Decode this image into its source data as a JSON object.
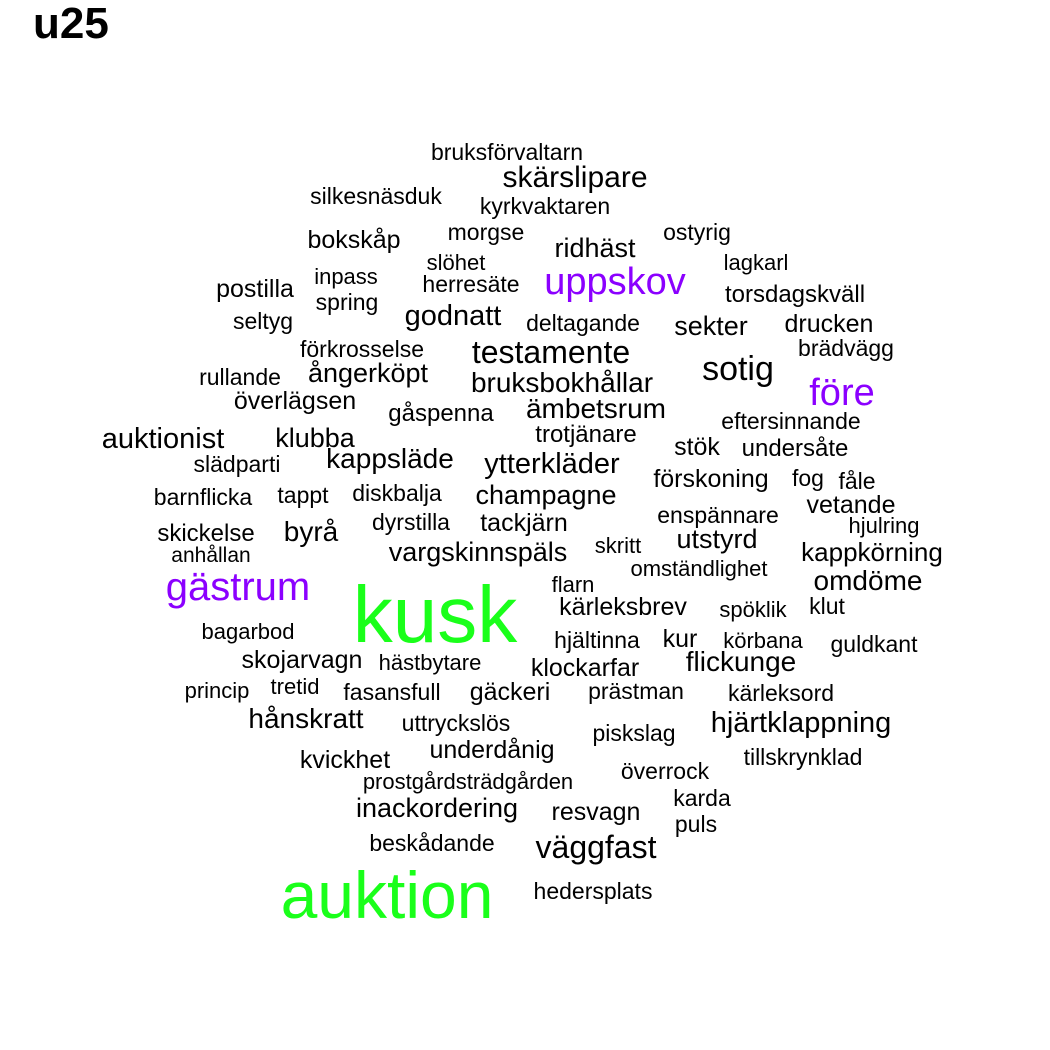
{
  "title": "u25",
  "colors": {
    "small": "#000000",
    "medium": "#8b00ff",
    "large": "#1aff1a"
  },
  "words": [
    {
      "text": "kusk",
      "size": "large"
    },
    {
      "text": "auktion",
      "size": "large"
    },
    {
      "text": "gästrum",
      "size": "medium"
    },
    {
      "text": "uppskov",
      "size": "medium"
    },
    {
      "text": "före",
      "size": "medium"
    },
    {
      "text": "bruksförvaltarn",
      "size": "small"
    },
    {
      "text": "skärslipare",
      "size": "small"
    },
    {
      "text": "silkesnäsduk",
      "size": "small"
    },
    {
      "text": "kyrkvaktaren",
      "size": "small"
    },
    {
      "text": "bokskåp",
      "size": "small"
    },
    {
      "text": "morgse",
      "size": "small"
    },
    {
      "text": "ridhäst",
      "size": "small"
    },
    {
      "text": "ostyrig",
      "size": "small"
    },
    {
      "text": "slöhet",
      "size": "small"
    },
    {
      "text": "lagkarl",
      "size": "small"
    },
    {
      "text": "inpass",
      "size": "small"
    },
    {
      "text": "herresäte",
      "size": "small"
    },
    {
      "text": "postilla",
      "size": "small"
    },
    {
      "text": "torsdagskväll",
      "size": "small"
    },
    {
      "text": "spring",
      "size": "small"
    },
    {
      "text": "seltyg",
      "size": "small"
    },
    {
      "text": "godnatt",
      "size": "small"
    },
    {
      "text": "deltagande",
      "size": "small"
    },
    {
      "text": "sekter",
      "size": "small"
    },
    {
      "text": "drucken",
      "size": "small"
    },
    {
      "text": "förkrosselse",
      "size": "small"
    },
    {
      "text": "testamente",
      "size": "small"
    },
    {
      "text": "brädvägg",
      "size": "small"
    },
    {
      "text": "sotig",
      "size": "small"
    },
    {
      "text": "rullande",
      "size": "small"
    },
    {
      "text": "ångerköpt",
      "size": "small"
    },
    {
      "text": "bruksbokhållar",
      "size": "small"
    },
    {
      "text": "överlägsen",
      "size": "small"
    },
    {
      "text": "ämbetsrum",
      "size": "small"
    },
    {
      "text": "gåspenna",
      "size": "small"
    },
    {
      "text": "eftersinnande",
      "size": "small"
    },
    {
      "text": "auktionist",
      "size": "small"
    },
    {
      "text": "klubba",
      "size": "small"
    },
    {
      "text": "trotjänare",
      "size": "small"
    },
    {
      "text": "stök",
      "size": "small"
    },
    {
      "text": "undersåte",
      "size": "small"
    },
    {
      "text": "slädparti",
      "size": "small"
    },
    {
      "text": "kappsläde",
      "size": "small"
    },
    {
      "text": "ytterkläder",
      "size": "small"
    },
    {
      "text": "förskoning",
      "size": "small"
    },
    {
      "text": "fog",
      "size": "small"
    },
    {
      "text": "fåle",
      "size": "small"
    },
    {
      "text": "barnflicka",
      "size": "small"
    },
    {
      "text": "tappt",
      "size": "small"
    },
    {
      "text": "diskbalja",
      "size": "small"
    },
    {
      "text": "champagne",
      "size": "small"
    },
    {
      "text": "vetande",
      "size": "small"
    },
    {
      "text": "enspännare",
      "size": "small"
    },
    {
      "text": "hjulring",
      "size": "small"
    },
    {
      "text": "skickelse",
      "size": "small"
    },
    {
      "text": "byrå",
      "size": "small"
    },
    {
      "text": "dyrstilla",
      "size": "small"
    },
    {
      "text": "tackjärn",
      "size": "small"
    },
    {
      "text": "utstyrd",
      "size": "small"
    },
    {
      "text": "anhållan",
      "size": "small"
    },
    {
      "text": "vargskinnspäls",
      "size": "small"
    },
    {
      "text": "skritt",
      "size": "small"
    },
    {
      "text": "kappkörning",
      "size": "small"
    },
    {
      "text": "omständlighet",
      "size": "small"
    },
    {
      "text": "omdöme",
      "size": "small"
    },
    {
      "text": "flarn",
      "size": "small"
    },
    {
      "text": "kärleksbrev",
      "size": "small"
    },
    {
      "text": "spöklik",
      "size": "small"
    },
    {
      "text": "klut",
      "size": "small"
    },
    {
      "text": "bagarbod",
      "size": "small"
    },
    {
      "text": "hjältinna",
      "size": "small"
    },
    {
      "text": "kur",
      "size": "small"
    },
    {
      "text": "körbana",
      "size": "small"
    },
    {
      "text": "guldkant",
      "size": "small"
    },
    {
      "text": "skojarvagn",
      "size": "small"
    },
    {
      "text": "hästbytare",
      "size": "small"
    },
    {
      "text": "klockarfar",
      "size": "small"
    },
    {
      "text": "flickunge",
      "size": "small"
    },
    {
      "text": "princip",
      "size": "small"
    },
    {
      "text": "tretid",
      "size": "small"
    },
    {
      "text": "fasansfull",
      "size": "small"
    },
    {
      "text": "gäckeri",
      "size": "small"
    },
    {
      "text": "prästman",
      "size": "small"
    },
    {
      "text": "kärleksord",
      "size": "small"
    },
    {
      "text": "hånskratt",
      "size": "small"
    },
    {
      "text": "uttryckslös",
      "size": "small"
    },
    {
      "text": "hjärtklappning",
      "size": "small"
    },
    {
      "text": "piskslag",
      "size": "small"
    },
    {
      "text": "underdånig",
      "size": "small"
    },
    {
      "text": "kvickhet",
      "size": "small"
    },
    {
      "text": "tillskrynklad",
      "size": "small"
    },
    {
      "text": "överrock",
      "size": "small"
    },
    {
      "text": "prostgårdsträdgården",
      "size": "small"
    },
    {
      "text": "karda",
      "size": "small"
    },
    {
      "text": "inackordering",
      "size": "small"
    },
    {
      "text": "resvagn",
      "size": "small"
    },
    {
      "text": "puls",
      "size": "small"
    },
    {
      "text": "beskådande",
      "size": "small"
    },
    {
      "text": "väggfast",
      "size": "small"
    },
    {
      "text": "hedersplats",
      "size": "small"
    }
  ]
}
